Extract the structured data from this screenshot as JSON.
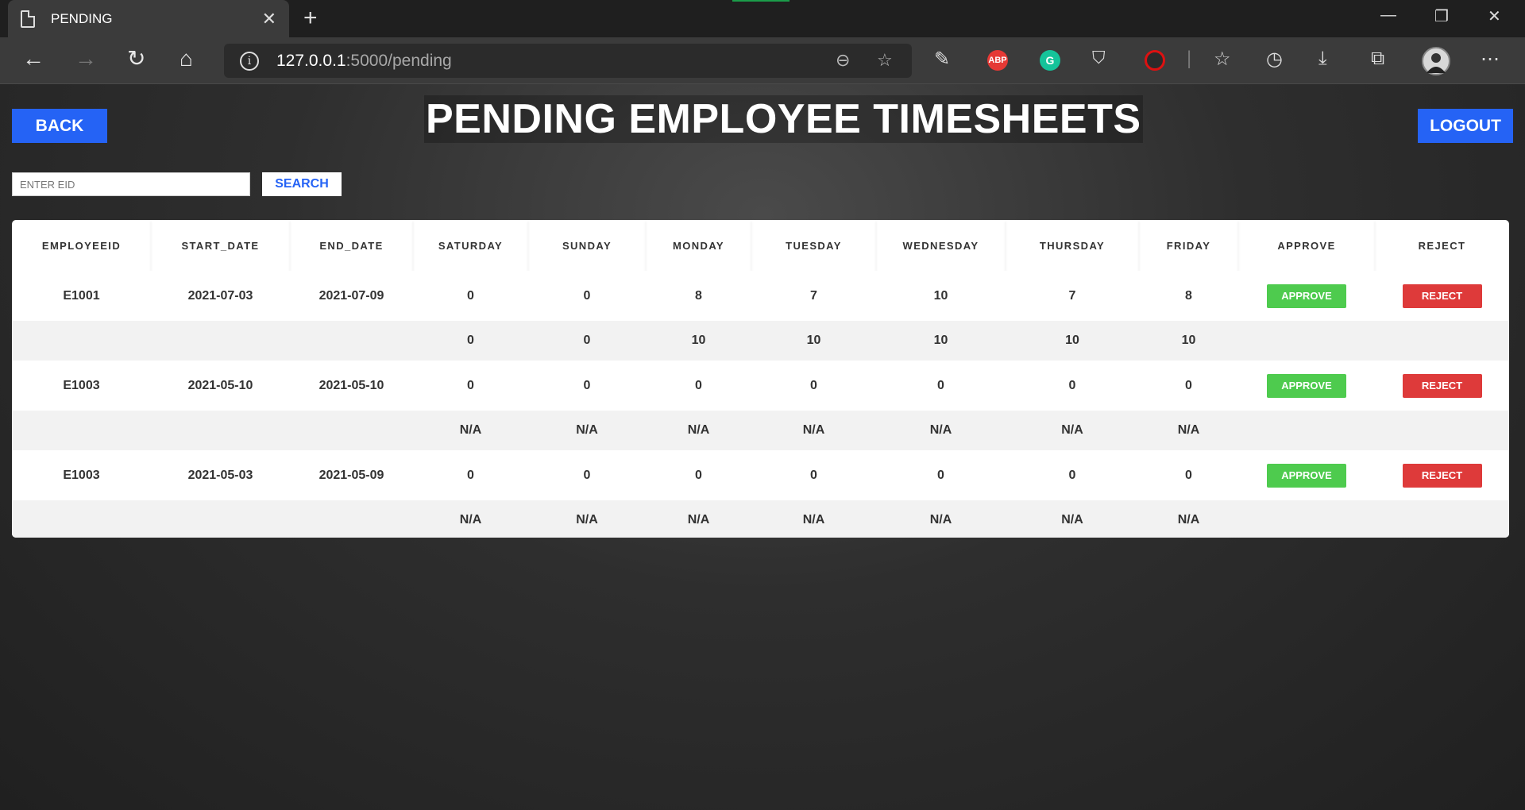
{
  "browser": {
    "tab_title": "PENDING",
    "url_host": "127.0.0.1",
    "url_path": ":5000/pending",
    "extensions": [
      "ABP",
      "G"
    ]
  },
  "header": {
    "back_label": "BACK",
    "title": "PENDING EMPLOYEE TIMESHEETS",
    "logout_label": "LOGOUT"
  },
  "search": {
    "placeholder": "ENTER EID",
    "button_label": "SEARCH"
  },
  "table": {
    "columns": [
      "EMPLOYEEID",
      "START_DATE",
      "END_DATE",
      "SATURDAY",
      "SUNDAY",
      "MONDAY",
      "TUESDAY",
      "WEDNESDAY",
      "THURSDAY",
      "FRIDAY",
      "APPROVE",
      "REJECT"
    ],
    "approve_label": "APPROVE",
    "reject_label": "REJECT",
    "records": [
      {
        "eid": "E1001",
        "start": "2021-07-03",
        "end": "2021-07-09",
        "hours": [
          "0",
          "0",
          "8",
          "7",
          "10",
          "7",
          "8"
        ],
        "sub": [
          "0",
          "0",
          "10",
          "10",
          "10",
          "10",
          "10"
        ]
      },
      {
        "eid": "E1003",
        "start": "2021-05-10",
        "end": "2021-05-10",
        "hours": [
          "0",
          "0",
          "0",
          "0",
          "0",
          "0",
          "0"
        ],
        "sub": [
          "N/A",
          "N/A",
          "N/A",
          "N/A",
          "N/A",
          "N/A",
          "N/A"
        ]
      },
      {
        "eid": "E1003",
        "start": "2021-05-03",
        "end": "2021-05-09",
        "hours": [
          "0",
          "0",
          "0",
          "0",
          "0",
          "0",
          "0"
        ],
        "sub": [
          "N/A",
          "N/A",
          "N/A",
          "N/A",
          "N/A",
          "N/A",
          "N/A"
        ]
      }
    ]
  },
  "colors": {
    "primary_blue": "#2563f5",
    "approve_green": "#4ecb4e",
    "reject_red": "#de3a3a"
  }
}
